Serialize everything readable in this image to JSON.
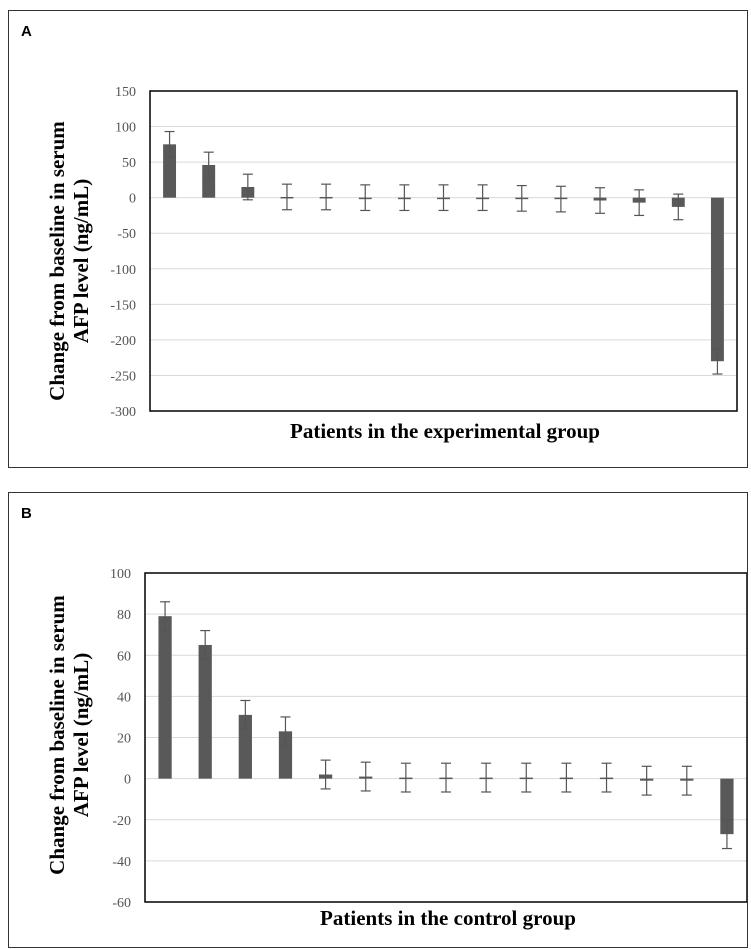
{
  "panels": [
    {
      "label": "A"
    },
    {
      "label": "B"
    }
  ],
  "chart_data": [
    {
      "type": "bar",
      "title": "",
      "xlabel": "Patients in the experimental group",
      "ylabel_line1": "Change from baseline in serum",
      "ylabel_line2": "AFP level (ng/mL)",
      "ylim": [
        -300,
        150
      ],
      "yticks": [
        150,
        100,
        50,
        0,
        -50,
        -100,
        -150,
        -200,
        -250,
        -300
      ],
      "grid": true,
      "color": "#595959",
      "values": [
        75,
        46,
        15,
        1,
        1,
        0,
        0,
        0,
        0,
        -1,
        -2,
        -4,
        -7,
        -13,
        -230
      ],
      "errors": [
        18,
        18,
        18,
        18,
        18,
        18,
        18,
        18,
        18,
        18,
        18,
        18,
        18,
        18,
        18
      ]
    },
    {
      "type": "bar",
      "title": "",
      "xlabel": "Patients in the control group",
      "ylabel_line1": "Change from baseline in serum",
      "ylabel_line2": "AFP level (ng/mL)",
      "ylim": [
        -60,
        100
      ],
      "yticks": [
        100,
        80,
        60,
        40,
        20,
        0,
        -20,
        -40,
        -60
      ],
      "grid": true,
      "color": "#595959",
      "values": [
        79,
        65,
        31,
        23,
        2,
        1,
        0.5,
        0.5,
        0.5,
        0.5,
        0.5,
        0.5,
        -1,
        -1,
        -27
      ],
      "errors": [
        7,
        7,
        7,
        7,
        7,
        7,
        7,
        7,
        7,
        7,
        7,
        7,
        7,
        7,
        7
      ]
    }
  ]
}
